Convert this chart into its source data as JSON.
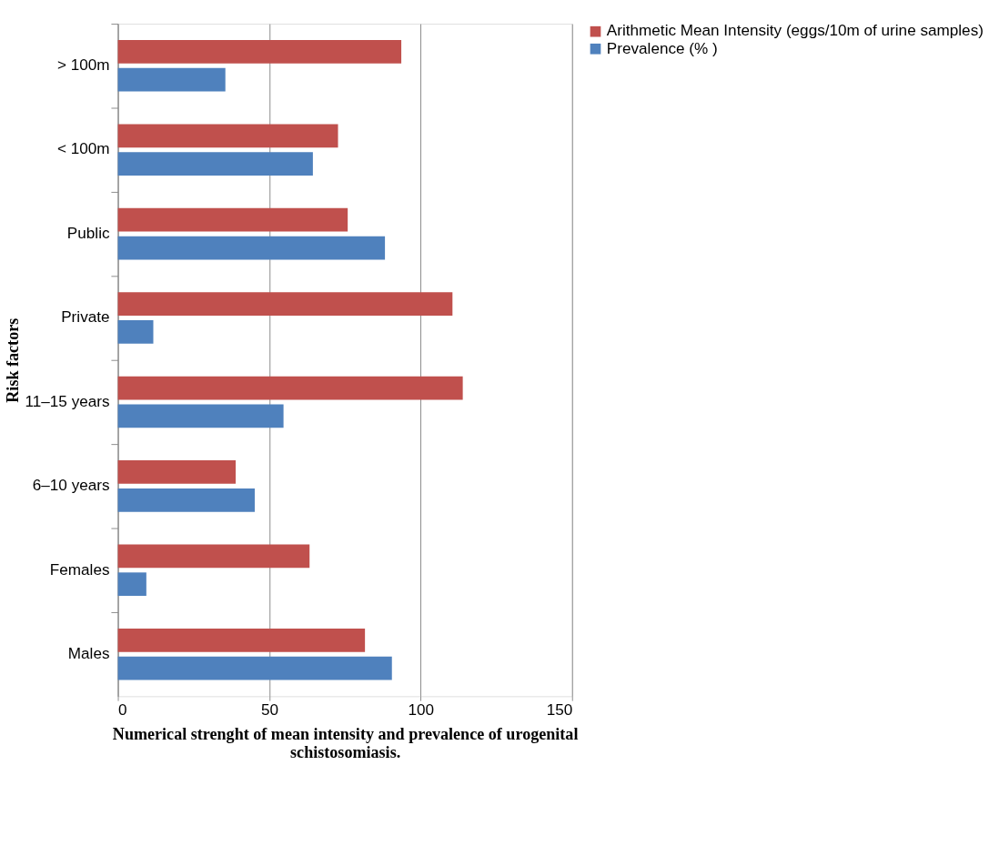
{
  "chart_data": {
    "type": "bar",
    "orientation": "horizontal",
    "ylabel": "Risk factors",
    "xlabel": "Numerical strenght of mean intensity and prevalence of urogenital schistosomiasis.",
    "categories": [
      "> 100m",
      "< 100m",
      "Public",
      "Private",
      "11–15 years",
      "6–10 years",
      "Females",
      "Males"
    ],
    "series": [
      {
        "name": "Arithmetic Mean Intensity (eggs/10m of urine samples)",
        "color": "#c0504d",
        "values": [
          93.6,
          72.7,
          75.9,
          110.5,
          113.9,
          38.9,
          63.3,
          81.6
        ]
      },
      {
        "name": "Prevalence (% )",
        "color": "#4f81bd",
        "values": [
          35.5,
          64.4,
          88.2,
          11.7,
          54.7,
          45.2,
          9.4,
          90.5
        ]
      }
    ],
    "xlim": [
      0,
      150
    ],
    "xticks": [
      0,
      50,
      100,
      150
    ],
    "grid": "x",
    "legend": "right"
  }
}
